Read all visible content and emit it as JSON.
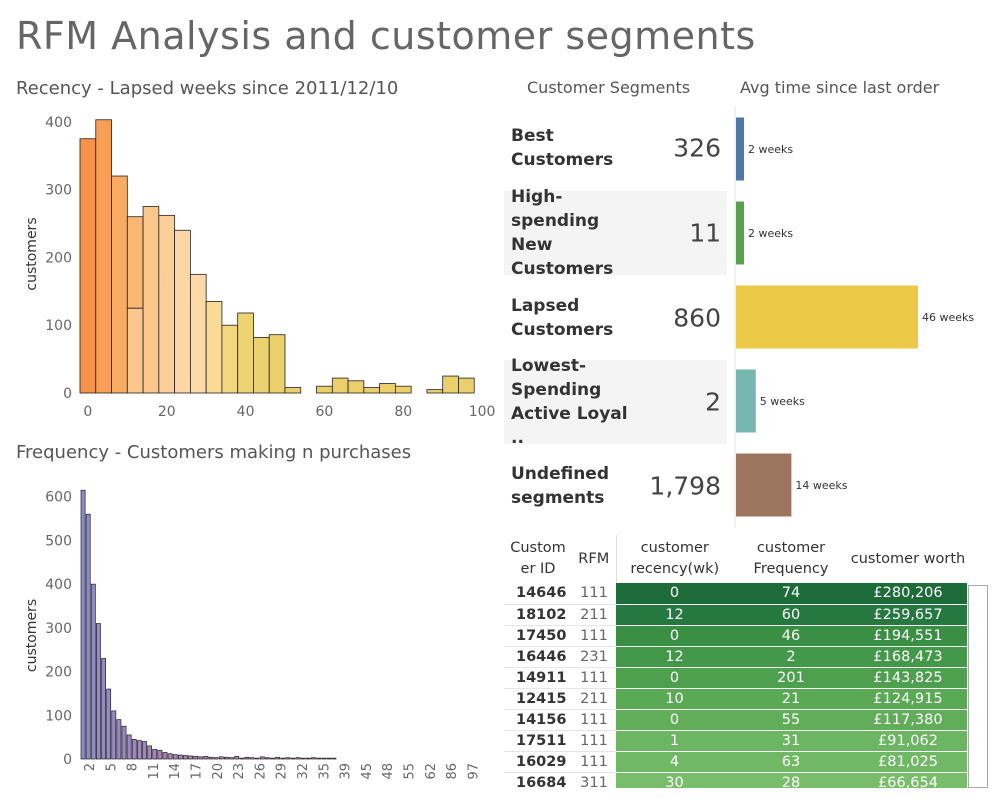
{
  "page": {
    "title": "RFM Analysis and customer segments"
  },
  "recency": {
    "title": "Recency - Lapsed weeks since  2011/12/10",
    "ylabel": "customers"
  },
  "frequency": {
    "title": "Frequency - Customers making n purchases",
    "ylabel": "customers"
  },
  "segments": {
    "header_left": "Customer Segments",
    "header_right": "Avg time since last order",
    "rows": [
      {
        "name": "Best Customers",
        "count": "326",
        "avg": "2 weeks",
        "avg_weeks": 2,
        "color": "#4e79a7"
      },
      {
        "name": "High-spending New Customers",
        "count": "11",
        "avg": "2 weeks",
        "avg_weeks": 2,
        "color": "#59a14f"
      },
      {
        "name": "Lapsed Customers",
        "count": "860",
        "avg": "46 weeks",
        "avg_weeks": 46,
        "color": "#edc948"
      },
      {
        "name": "Lowest-Spending Active Loyal ..",
        "count": "2",
        "avg": "5 weeks",
        "avg_weeks": 5,
        "color": "#76b7b2"
      },
      {
        "name": "Undefined segments",
        "count": "1,798",
        "avg": "14 weeks",
        "avg_weeks": 14,
        "color": "#9c755f"
      }
    ]
  },
  "table": {
    "headers": [
      "Custom er ID",
      "RFM",
      "customer recency(wk)",
      "customer Frequency",
      "customer worth"
    ],
    "rows": [
      [
        "14646",
        "111",
        "0",
        "74",
        "£280,206"
      ],
      [
        "18102",
        "211",
        "12",
        "60",
        "£259,657"
      ],
      [
        "17450",
        "111",
        "0",
        "46",
        "£194,551"
      ],
      [
        "16446",
        "231",
        "12",
        "2",
        "£168,473"
      ],
      [
        "14911",
        "111",
        "0",
        "201",
        "£143,825"
      ],
      [
        "12415",
        "211",
        "10",
        "21",
        "£124,915"
      ],
      [
        "14156",
        "111",
        "0",
        "55",
        "£117,380"
      ],
      [
        "17511",
        "111",
        "1",
        "31",
        "£91,062"
      ],
      [
        "16029",
        "111",
        "4",
        "63",
        "£81,025"
      ],
      [
        "16684",
        "311",
        "30",
        "28",
        "£66,654"
      ]
    ],
    "row_colors": [
      "#1e6b3a",
      "#25783f",
      "#3a8f45",
      "#43984a",
      "#4ea04f",
      "#59a955",
      "#61ad5a",
      "#6cb562",
      "#70b865",
      "#78bd6a"
    ]
  },
  "chart_data": [
    {
      "type": "bar",
      "title": "Recency - Lapsed weeks since  2011/12/10",
      "xlabel": "",
      "ylabel": "customers",
      "xlim": [
        -2,
        102
      ],
      "ylim": [
        0,
        410
      ],
      "x_ticks": [
        0,
        20,
        40,
        60,
        80,
        100
      ],
      "y_ticks": [
        0,
        100,
        200,
        300,
        400
      ],
      "bin_width": 4,
      "bins": [
        {
          "x": 0,
          "value": 375,
          "color": "#f6924a"
        },
        {
          "x": 4,
          "value": 403,
          "color": "#f7a055"
        },
        {
          "x": 8,
          "value": 320,
          "color": "#f8ac63"
        },
        {
          "x": 12,
          "value": 260,
          "color": "#f9b872",
          "split": 125,
          "color_low": "#fbc78c"
        },
        {
          "x": 16,
          "value": 275,
          "color": "#fbc68a"
        },
        {
          "x": 20,
          "value": 262,
          "color": "#fccf98"
        },
        {
          "x": 24,
          "value": 240,
          "color": "#fdd6a5"
        },
        {
          "x": 28,
          "value": 175,
          "color": "#fcd9a5"
        },
        {
          "x": 32,
          "value": 135,
          "color": "#f9da96"
        },
        {
          "x": 36,
          "value": 100,
          "color": "#f2d77e"
        },
        {
          "x": 40,
          "value": 118,
          "color": "#edd374"
        },
        {
          "x": 44,
          "value": 82,
          "color": "#ecd170"
        },
        {
          "x": 48,
          "value": 86,
          "color": "#ebd06d"
        },
        {
          "x": 52,
          "value": 8,
          "color": "#ebcf6b"
        },
        {
          "x": 60,
          "value": 10,
          "color": "#eacf6a"
        },
        {
          "x": 64,
          "value": 22,
          "color": "#eacf6a"
        },
        {
          "x": 68,
          "value": 18,
          "color": "#eacf6a"
        },
        {
          "x": 72,
          "value": 8,
          "color": "#eacf6a"
        },
        {
          "x": 76,
          "value": 14,
          "color": "#eacf6a"
        },
        {
          "x": 80,
          "value": 10,
          "color": "#eacf6a"
        },
        {
          "x": 88,
          "value": 5,
          "color": "#eacf6a"
        },
        {
          "x": 92,
          "value": 25,
          "color": "#eacf6a"
        },
        {
          "x": 96,
          "value": 22,
          "color": "#eacf6a"
        }
      ]
    },
    {
      "type": "bar",
      "title": "Frequency - Customers making n purchases",
      "xlabel": "",
      "ylabel": "customers",
      "ylim": [
        0,
        620
      ],
      "y_ticks": [
        0,
        100,
        200,
        300,
        400,
        500,
        600
      ],
      "x_tick_labels": [
        "2",
        "5",
        "8",
        "11",
        "14",
        "17",
        "20",
        "23",
        "26",
        "29",
        "32",
        "35",
        "39",
        "45",
        "48",
        "55",
        "62",
        "86",
        "97"
      ],
      "values": [
        615,
        560,
        400,
        310,
        230,
        160,
        110,
        90,
        75,
        55,
        45,
        42,
        40,
        30,
        22,
        20,
        15,
        12,
        10,
        9,
        8,
        7,
        6,
        5,
        6,
        4,
        3,
        5,
        4,
        3,
        6,
        2,
        4,
        3,
        2,
        5,
        3,
        2,
        4,
        2,
        3,
        2,
        3,
        2,
        2,
        3,
        2,
        2,
        2,
        2
      ]
    }
  ]
}
